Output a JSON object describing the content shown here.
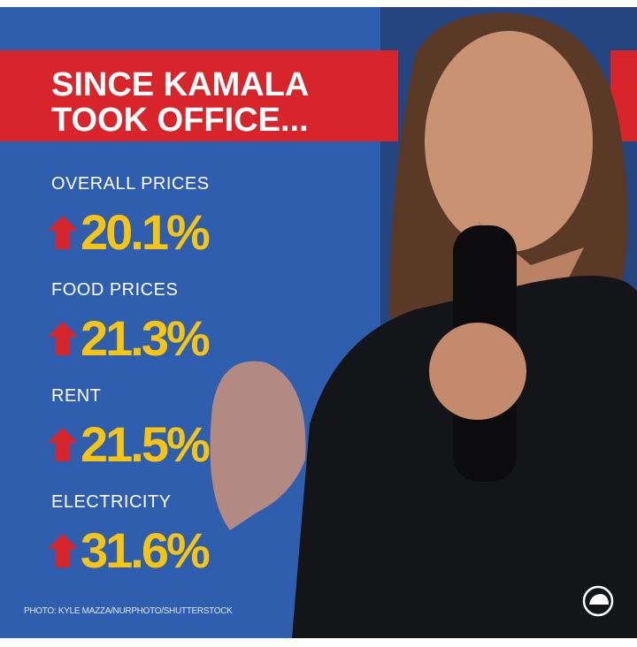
{
  "banner": {
    "title": [
      "SINCE KAMALA",
      "TOOK OFFICE..."
    ]
  },
  "stats": [
    {
      "label": "OVERALL PRICES",
      "value": "20.1%"
    },
    {
      "label": "FOOD PRICES",
      "value": "21.3%"
    },
    {
      "label": "RENT",
      "value": "21.5%"
    },
    {
      "label": "ELECTRICITY",
      "value": "31.6%"
    }
  ],
  "credit": "PHOTO: KYLE MAZZA/NURPHOTO/SHUTTERSTOCK"
}
